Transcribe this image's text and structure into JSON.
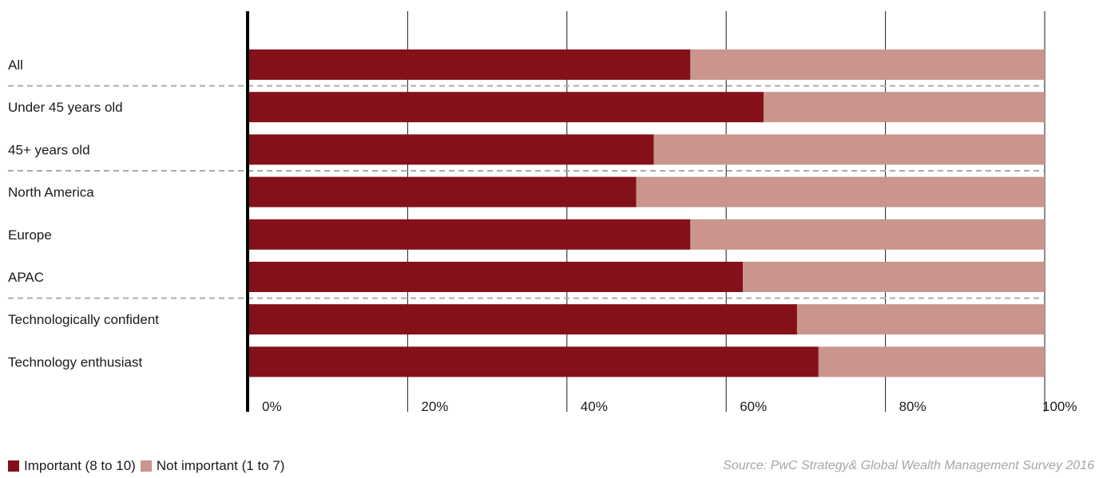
{
  "chart_data": {
    "type": "bar",
    "orientation": "horizontal",
    "stacked": true,
    "categories": [
      "All",
      "Under 45 years old",
      "45+ years old",
      "North America",
      "Europe",
      "APAC",
      "Technologically confident",
      "Technology enthusiast"
    ],
    "series": [
      {
        "name": "Important (8 to 10)",
        "color": "#84111a",
        "values": [
          55.5,
          64.7,
          50.9,
          48.7,
          55.5,
          62.1,
          68.9,
          71.6
        ]
      },
      {
        "name": "Not important (1 to 7)",
        "color": "#c9958c",
        "values": [
          44.5,
          35.3,
          49.1,
          51.3,
          44.5,
          37.9,
          31.1,
          28.4
        ]
      }
    ],
    "xlim": [
      0,
      100
    ],
    "x_ticks": [
      "0%",
      "20%",
      "40%",
      "60%",
      "80%",
      "100%"
    ],
    "grid": true,
    "group_separators_after": [
      "All",
      "45+ years old",
      "APAC"
    ],
    "legend_position": "bottom-left"
  },
  "source_note": "Source: PwC Strategy& Global Wealth Management Survey 2016"
}
